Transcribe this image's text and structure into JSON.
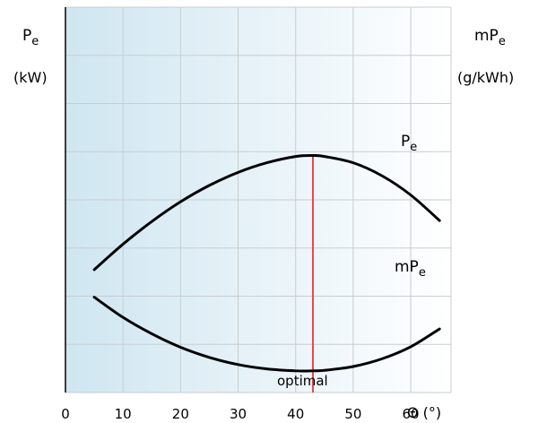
{
  "chart_data": {
    "type": "line",
    "x": [
      5,
      10,
      15,
      20,
      25,
      30,
      35,
      40,
      43,
      45,
      50,
      55,
      60,
      65
    ],
    "xlim": [
      0,
      67
    ],
    "x_ticks": [
      "0",
      "10",
      "20",
      "30",
      "40",
      "50",
      "60"
    ],
    "x_tick_values": [
      0,
      10,
      20,
      30,
      40,
      50,
      60
    ],
    "xlabel": "Θ (°)",
    "left_axis": {
      "symbol": "P",
      "subscript": "e",
      "unit": "(kW)"
    },
    "right_axis": {
      "symbol": "mP",
      "subscript": "e",
      "unit": "(g/kWh)"
    },
    "gridlines": {
      "vertical_every": 10,
      "horizontal_rows": 8
    },
    "grid": true,
    "series": [
      {
        "name": "P",
        "name_subscript": "e",
        "axis": "left",
        "values": [
          2.15,
          2.68,
          3.15,
          3.56,
          3.9,
          4.17,
          4.37,
          4.5,
          4.52,
          4.5,
          4.37,
          4.1,
          3.7,
          3.17
        ]
      },
      {
        "name": "mP",
        "name_subscript": "e",
        "axis": "right",
        "values": [
          1.58,
          1.16,
          0.82,
          0.54,
          0.33,
          0.18,
          0.09,
          0.05,
          0.05,
          0.06,
          0.14,
          0.3,
          0.55,
          0.92
        ]
      }
    ],
    "y_range": [
      -0.4,
      7.6
    ],
    "marker": {
      "x": 43,
      "label": "optimal",
      "color": "#e8474b"
    },
    "colors": {
      "curve": "#000000",
      "gradient_start": "#cfe6f1",
      "gradient_end": "#ffffff",
      "grid": "#c8cdd2"
    }
  }
}
